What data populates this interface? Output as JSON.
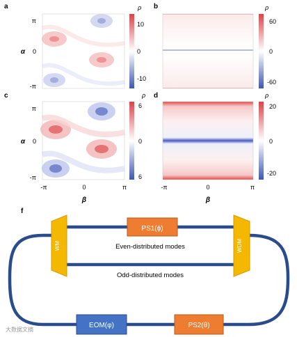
{
  "panels": {
    "a": {
      "label": "a",
      "cb_title": "ρ",
      "cb_ticks": [
        "10",
        "0",
        "-10"
      ]
    },
    "b": {
      "label": "b",
      "cb_title": "ρ",
      "cb_ticks": [
        "60",
        "0",
        "-60"
      ]
    },
    "c": {
      "label": "c",
      "cb_title": "ρ",
      "cb_ticks": [
        "6",
        "0",
        "6"
      ]
    },
    "d": {
      "label": "d",
      "cb_title": "ρ",
      "cb_ticks": [
        "20",
        "0",
        "-20"
      ]
    }
  },
  "axes": {
    "ylabel": "α",
    "xlabel": "β",
    "y_ticks": [
      "π",
      "0",
      "-π"
    ],
    "x_ticks": [
      "-π",
      "0",
      "π"
    ]
  },
  "schematic": {
    "label": "f",
    "wm": "WM",
    "wdm": "WDM",
    "ps1": "PS1(ϕ)",
    "ps2": "PS2(θ)",
    "eom": "EOM(φ)",
    "even_modes": "Even-distributed modes",
    "odd_modes": "Odd-distributed modes"
  },
  "watermark": "大数据文摘",
  "colors": {
    "positive": "#e03c3c",
    "negative": "#3f56b0",
    "waveguide": "#2b4c8c",
    "ps_box": "#ee7d31",
    "eom_box": "#4472c4",
    "coupler": "#f5b800"
  }
}
